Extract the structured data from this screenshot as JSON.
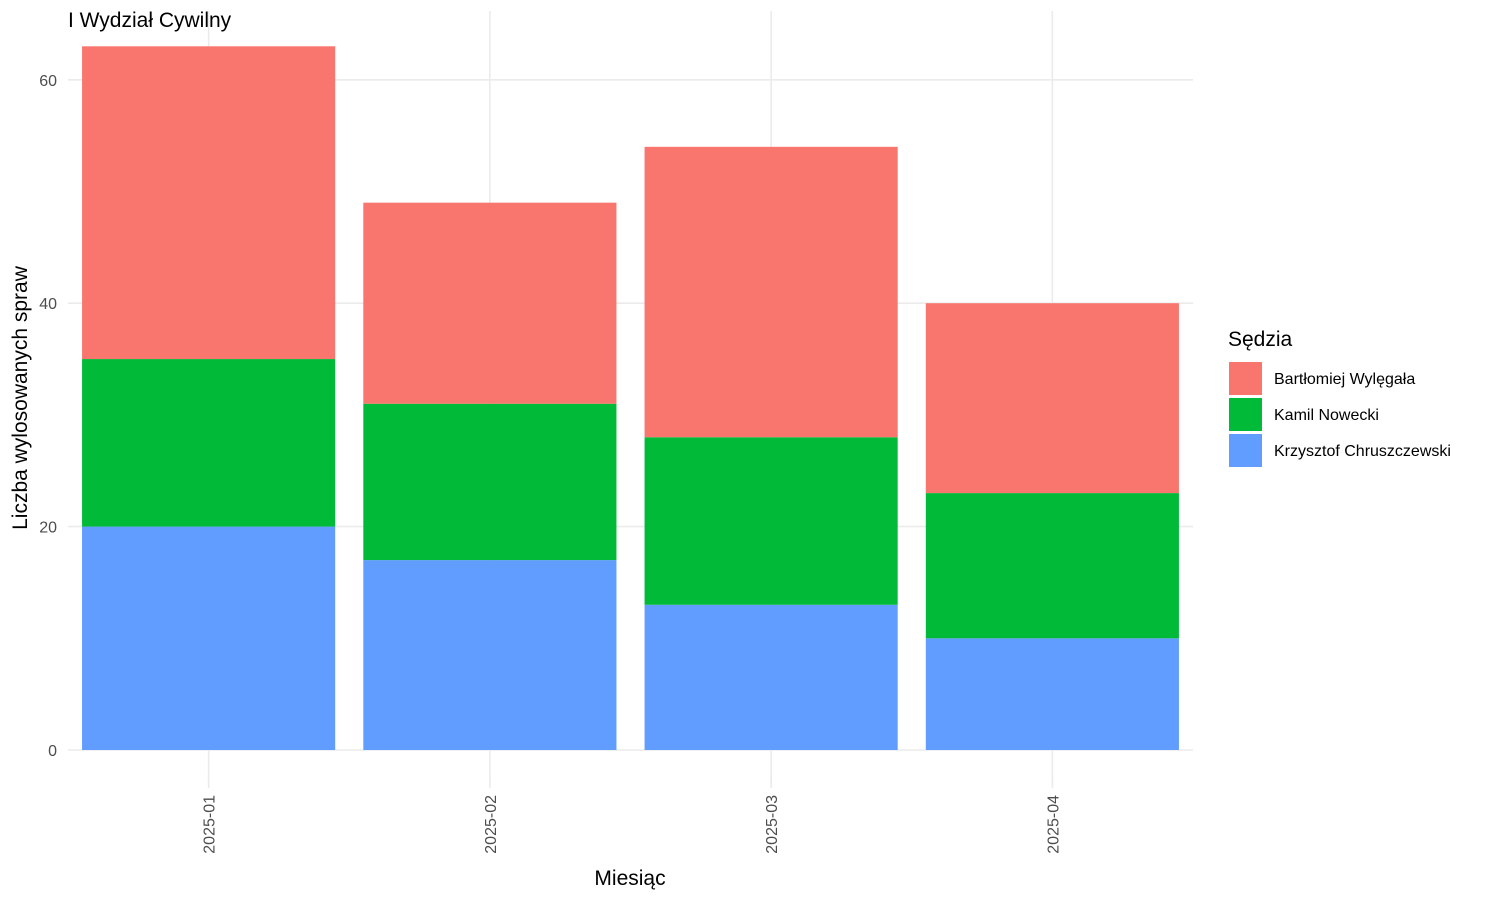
{
  "chart_data": {
    "type": "bar",
    "stacked": true,
    "title": "I Wydział Cywilny",
    "xlabel": "Miesiąc",
    "ylabel": "Liczba wylosowanych spraw",
    "categories": [
      "2025-01",
      "2025-02",
      "2025-03",
      "2025-04"
    ],
    "ylim": [
      0,
      63
    ],
    "yticks": [
      0,
      20,
      40,
      60
    ],
    "grid": true,
    "legend_title": "Sędzia",
    "legend_position": "right",
    "series": [
      {
        "name": "Krzysztof Chruszczewski",
        "color": "#619CFF",
        "values": [
          20,
          17,
          13,
          10
        ]
      },
      {
        "name": "Kamil Nowecki",
        "color": "#00BA38",
        "values": [
          15,
          14,
          15,
          13
        ]
      },
      {
        "name": "Bartłomiej Wylęgała",
        "color": "#F8766D",
        "values": [
          28,
          18,
          26,
          17
        ]
      }
    ],
    "legend_order": [
      "Bartłomiej Wylęgała",
      "Kamil Nowecki",
      "Krzysztof Chruszczewski"
    ]
  }
}
